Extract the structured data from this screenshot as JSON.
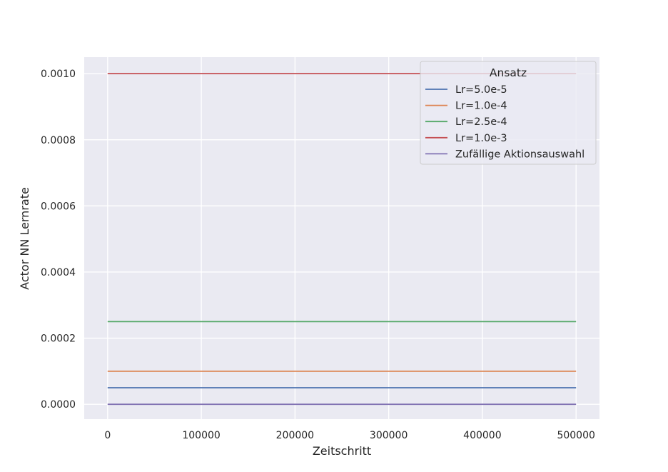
{
  "chart_data": {
    "type": "line",
    "title": "",
    "xlabel": "Zeitschritt",
    "ylabel": "Actor NN Lernrate",
    "xlim": [
      -25000,
      525000
    ],
    "ylim": [
      -4.5e-05,
      0.00105
    ],
    "xticks": [
      0,
      100000,
      200000,
      300000,
      400000,
      500000
    ],
    "xtick_labels": [
      "0",
      "100000",
      "200000",
      "300000",
      "400000",
      "500000"
    ],
    "yticks": [
      0.0,
      0.0002,
      0.0004,
      0.0006,
      0.0008,
      0.001
    ],
    "ytick_labels": [
      "0.0000",
      "0.0002",
      "0.0004",
      "0.0006",
      "0.0008",
      "0.0010"
    ],
    "grid": true,
    "background": "#eaeaf2",
    "legend": {
      "title": "Ansatz",
      "placement": "top-right"
    },
    "series": [
      {
        "name": "Lr=5.0e-5",
        "color": "#4c72b0",
        "x": [
          0,
          500000
        ],
        "y": [
          5e-05,
          5e-05
        ]
      },
      {
        "name": "Lr=1.0e-4",
        "color": "#dd8452",
        "x": [
          0,
          500000
        ],
        "y": [
          0.0001,
          0.0001
        ]
      },
      {
        "name": "Lr=2.5e-4",
        "color": "#55a868",
        "x": [
          0,
          500000
        ],
        "y": [
          0.00025,
          0.00025
        ]
      },
      {
        "name": "Lr=1.0e-3",
        "color": "#c44e52",
        "x": [
          0,
          500000
        ],
        "y": [
          0.001,
          0.001
        ]
      },
      {
        "name": "Zufällige Aktionsauswahl",
        "color": "#8172b3",
        "x": [
          0,
          500000
        ],
        "y": [
          0.0,
          0.0
        ]
      }
    ]
  }
}
